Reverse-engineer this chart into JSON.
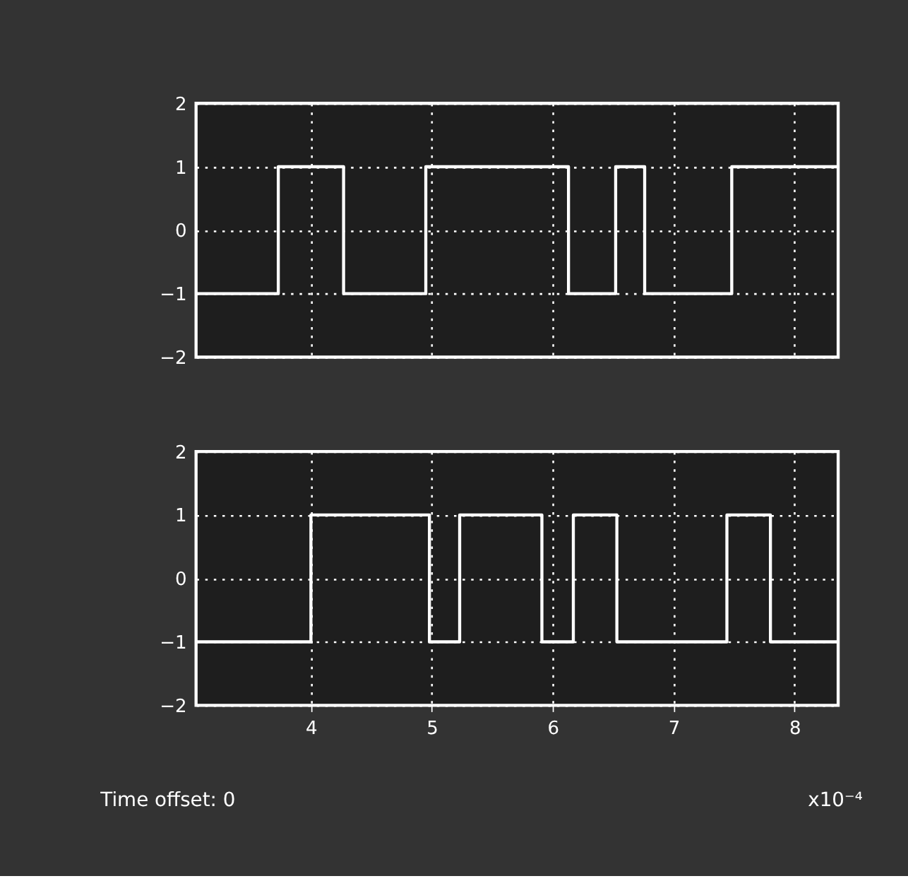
{
  "chart_data": [
    {
      "type": "step",
      "x": [
        3.05,
        3.73,
        4.27,
        4.95,
        6.13,
        6.52,
        6.76,
        7.48,
        8.36
      ],
      "series": [
        {
          "color": "#ffffff",
          "values": [
            -1,
            1,
            -1,
            1,
            -1,
            1,
            -1,
            1,
            1
          ]
        }
      ],
      "xlim": [
        3.05,
        8.36
      ],
      "xticks": [
        4,
        5,
        6,
        7,
        8
      ],
      "ylim": [
        -2,
        2
      ],
      "yticks": [
        -2,
        -1,
        0,
        1,
        2
      ],
      "grid": true,
      "line_style": "solid",
      "tick_labels": "y"
    },
    {
      "type": "step",
      "x": [
        3.05,
        4.0,
        4.98,
        5.23,
        5.91,
        6.17,
        6.53,
        7.44,
        7.8,
        8.36
      ],
      "series": [
        {
          "color": "#ffffff",
          "values": [
            -1,
            1,
            -1,
            1,
            -1,
            1,
            -1,
            1,
            -1,
            -1
          ]
        }
      ],
      "xlim": [
        3.05,
        8.36
      ],
      "xticks": [
        4,
        5,
        6,
        7,
        8
      ],
      "ylim": [
        -2,
        2
      ],
      "yticks": [
        -2,
        -1,
        0,
        1,
        2
      ],
      "grid": true,
      "line_style": "solid",
      "annotations": [
        "Time offset:  0",
        "x10⁻⁴"
      ]
    }
  ]
}
